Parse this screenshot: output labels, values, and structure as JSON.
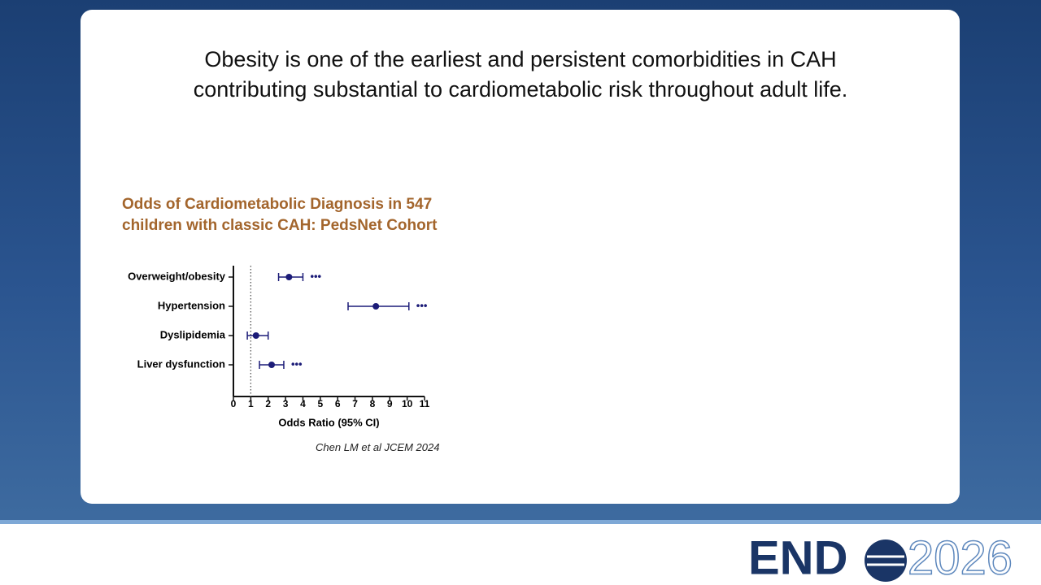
{
  "slide_title": [
    "Obesity is one of the earliest and persistent comorbidities in CAH",
    "contributing substantial to cardiometabolic risk throughout adult life."
  ],
  "chart_data": {
    "type": "forest",
    "title": [
      "Odds of Cardiometabolic Diagnosis in 547",
      "children with classic CAH: PedsNet Cohort"
    ],
    "categories": [
      "Overweight/obesity",
      "Hypertension",
      "Dyslipidemia",
      "Liver dysfunction"
    ],
    "values": [
      3.2,
      8.2,
      1.3,
      2.2
    ],
    "ci_low": [
      2.6,
      6.6,
      0.8,
      1.5
    ],
    "ci_high": [
      4.0,
      10.1,
      2.0,
      2.9
    ],
    "significance": [
      "•••",
      "•••",
      null,
      "•••"
    ],
    "color": "#1c1c78",
    "reference_line": 1,
    "xlabel": "Odds Ratio (95% CI)",
    "xlim": [
      0,
      11
    ],
    "xticks": [
      0,
      1,
      2,
      3,
      4,
      5,
      6,
      7,
      8,
      9,
      10,
      11
    ]
  },
  "citation": "Chen LM et al JCEM 2024",
  "logo": {
    "brand": "END",
    "year": "2026"
  }
}
